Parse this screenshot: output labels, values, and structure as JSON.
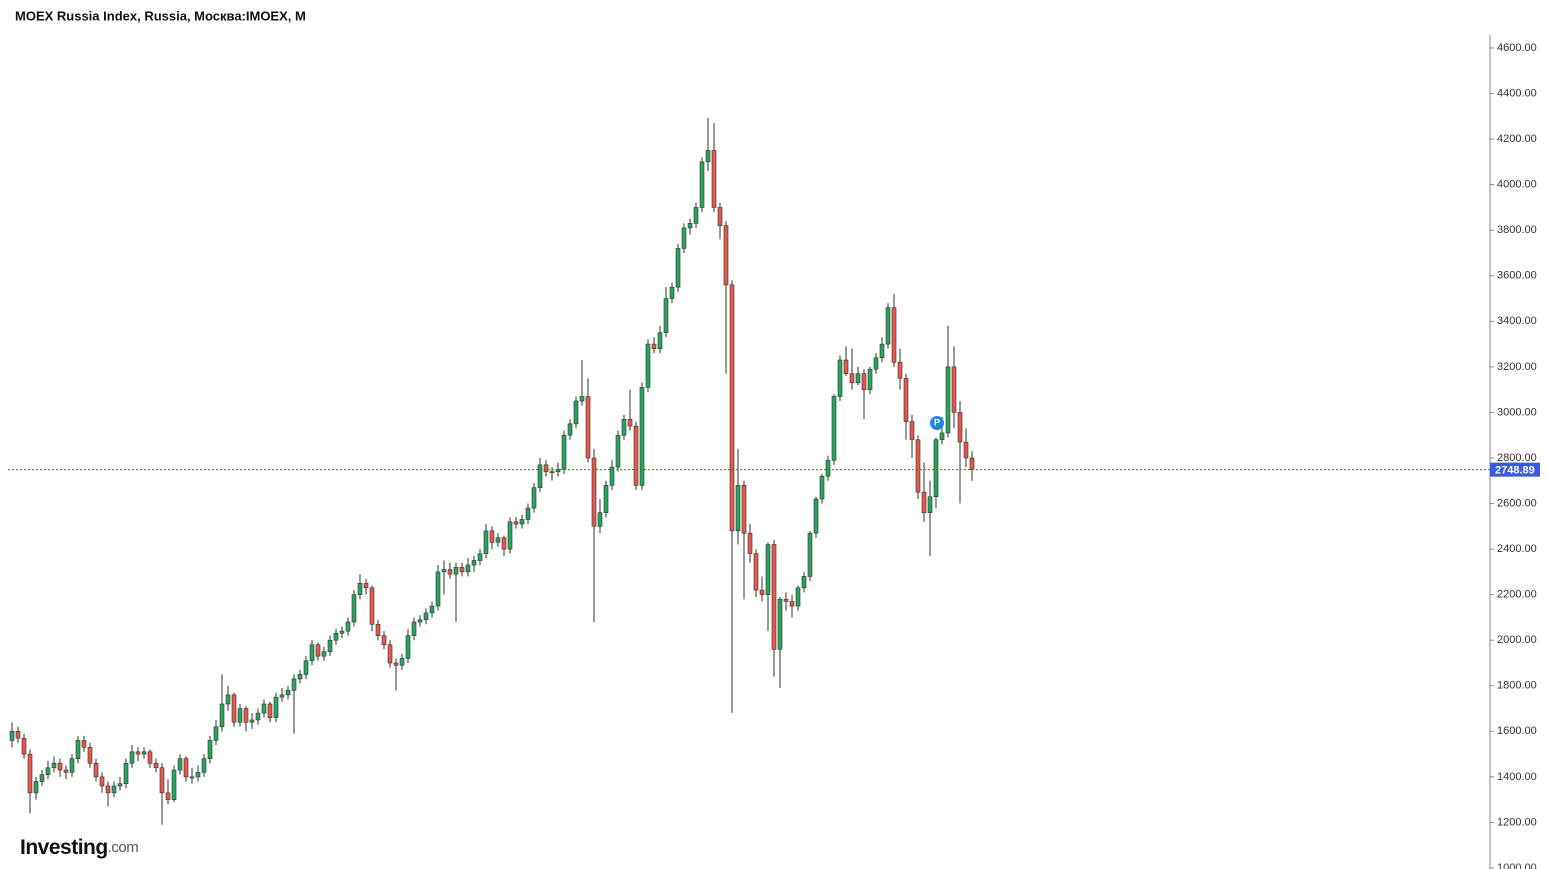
{
  "chart_data": {
    "type": "candlestick",
    "title": "MOEX Russia Index, Russia, Москва:IMOEX, M",
    "logo": {
      "name": "Investing",
      "suffix": ".com"
    },
    "marker_label": "P",
    "up_color": "#2aa35c",
    "down_color": "#e2594b",
    "line_color": "#3b5bdb",
    "ylim": [
      1000,
      4657
    ],
    "yticks": [
      {
        "value": 1000,
        "label": "1000.00"
      },
      {
        "value": 1200,
        "label": "1200.00"
      },
      {
        "value": 1400,
        "label": "1400.00"
      },
      {
        "value": 1600,
        "label": "1600.00"
      },
      {
        "value": 1800,
        "label": "1800.00"
      },
      {
        "value": 2000,
        "label": "2000.00"
      },
      {
        "value": 2200,
        "label": "2200.00"
      },
      {
        "value": 2400,
        "label": "2400.00"
      },
      {
        "value": 2600,
        "label": "2600.00"
      },
      {
        "value": 2800,
        "label": "2800.00"
      },
      {
        "value": 3000,
        "label": "3000.00"
      },
      {
        "value": 3200,
        "label": "3200.00"
      },
      {
        "value": 3400,
        "label": "3400.00"
      },
      {
        "value": 3600,
        "label": "3600.00"
      },
      {
        "value": 3800,
        "label": "3800.00"
      },
      {
        "value": 4000,
        "label": "4000.00"
      },
      {
        "value": 4200,
        "label": "4200.00"
      },
      {
        "value": 4400,
        "label": "4400.00"
      },
      {
        "value": 4600,
        "label": "4600.00"
      }
    ],
    "last_price": 2748.89,
    "candles": [
      [
        1560,
        1640,
        1530,
        1600
      ],
      [
        1600,
        1620,
        1550,
        1570
      ],
      [
        1570,
        1590,
        1480,
        1500
      ],
      [
        1500,
        1520,
        1240,
        1330
      ],
      [
        1330,
        1400,
        1300,
        1380
      ],
      [
        1380,
        1430,
        1360,
        1410
      ],
      [
        1410,
        1470,
        1390,
        1440
      ],
      [
        1440,
        1490,
        1420,
        1460
      ],
      [
        1460,
        1480,
        1400,
        1430
      ],
      [
        1430,
        1450,
        1390,
        1420
      ],
      [
        1420,
        1500,
        1400,
        1480
      ],
      [
        1480,
        1580,
        1460,
        1560
      ],
      [
        1560,
        1580,
        1510,
        1530
      ],
      [
        1530,
        1550,
        1440,
        1460
      ],
      [
        1460,
        1480,
        1380,
        1400
      ],
      [
        1400,
        1420,
        1330,
        1360
      ],
      [
        1360,
        1380,
        1270,
        1330
      ],
      [
        1330,
        1380,
        1310,
        1360
      ],
      [
        1360,
        1400,
        1340,
        1370
      ],
      [
        1370,
        1480,
        1350,
        1460
      ],
      [
        1460,
        1540,
        1440,
        1510
      ],
      [
        1510,
        1530,
        1470,
        1500
      ],
      [
        1500,
        1530,
        1480,
        1510
      ],
      [
        1510,
        1520,
        1440,
        1460
      ],
      [
        1460,
        1480,
        1420,
        1440
      ],
      [
        1440,
        1460,
        1190,
        1330
      ],
      [
        1330,
        1390,
        1280,
        1300
      ],
      [
        1300,
        1450,
        1290,
        1430
      ],
      [
        1430,
        1500,
        1410,
        1480
      ],
      [
        1480,
        1490,
        1380,
        1400
      ],
      [
        1400,
        1440,
        1370,
        1400
      ],
      [
        1400,
        1450,
        1380,
        1420
      ],
      [
        1420,
        1500,
        1400,
        1480
      ],
      [
        1480,
        1580,
        1460,
        1560
      ],
      [
        1560,
        1650,
        1540,
        1620
      ],
      [
        1620,
        1850,
        1600,
        1720
      ],
      [
        1720,
        1800,
        1690,
        1760
      ],
      [
        1760,
        1770,
        1620,
        1640
      ],
      [
        1640,
        1720,
        1620,
        1700
      ],
      [
        1700,
        1710,
        1600,
        1640
      ],
      [
        1640,
        1680,
        1610,
        1650
      ],
      [
        1650,
        1700,
        1630,
        1680
      ],
      [
        1680,
        1740,
        1660,
        1720
      ],
      [
        1720,
        1730,
        1640,
        1660
      ],
      [
        1660,
        1770,
        1640,
        1750
      ],
      [
        1750,
        1790,
        1730,
        1760
      ],
      [
        1760,
        1800,
        1740,
        1780
      ],
      [
        1780,
        1850,
        1590,
        1830
      ],
      [
        1830,
        1870,
        1810,
        1850
      ],
      [
        1850,
        1930,
        1830,
        1910
      ],
      [
        1910,
        2000,
        1890,
        1980
      ],
      [
        1980,
        1990,
        1910,
        1930
      ],
      [
        1930,
        1970,
        1910,
        1950
      ],
      [
        1950,
        2020,
        1930,
        2000
      ],
      [
        2000,
        2050,
        1980,
        2030
      ],
      [
        2030,
        2060,
        2010,
        2040
      ],
      [
        2040,
        2100,
        2020,
        2080
      ],
      [
        2080,
        2220,
        2060,
        2200
      ],
      [
        2200,
        2290,
        2180,
        2250
      ],
      [
        2250,
        2270,
        2200,
        2230
      ],
      [
        2230,
        2240,
        2040,
        2070
      ],
      [
        2070,
        2090,
        2000,
        2020
      ],
      [
        2020,
        2040,
        1960,
        1980
      ],
      [
        1980,
        2000,
        1880,
        1900
      ],
      [
        1900,
        1920,
        1780,
        1890
      ],
      [
        1890,
        1940,
        1870,
        1920
      ],
      [
        1920,
        2050,
        1900,
        2020
      ],
      [
        2020,
        2100,
        2000,
        2080
      ],
      [
        2080,
        2110,
        2060,
        2090
      ],
      [
        2090,
        2140,
        2070,
        2120
      ],
      [
        2120,
        2170,
        2100,
        2150
      ],
      [
        2150,
        2330,
        2130,
        2300
      ],
      [
        2300,
        2350,
        2200,
        2310
      ],
      [
        2310,
        2340,
        2270,
        2290
      ],
      [
        2290,
        2340,
        2080,
        2320
      ],
      [
        2320,
        2340,
        2280,
        2300
      ],
      [
        2300,
        2360,
        2280,
        2330
      ],
      [
        2330,
        2370,
        2300,
        2350
      ],
      [
        2350,
        2400,
        2330,
        2380
      ],
      [
        2380,
        2510,
        2360,
        2480
      ],
      [
        2480,
        2500,
        2400,
        2430
      ],
      [
        2430,
        2470,
        2410,
        2450
      ],
      [
        2450,
        2460,
        2370,
        2400
      ],
      [
        2400,
        2540,
        2380,
        2520
      ],
      [
        2520,
        2540,
        2490,
        2510
      ],
      [
        2510,
        2550,
        2490,
        2530
      ],
      [
        2530,
        2600,
        2510,
        2580
      ],
      [
        2580,
        2690,
        2560,
        2670
      ],
      [
        2670,
        2800,
        2650,
        2770
      ],
      [
        2770,
        2790,
        2720,
        2740
      ],
      [
        2740,
        2760,
        2700,
        2740
      ],
      [
        2740,
        2780,
        2720,
        2750
      ],
      [
        2750,
        2920,
        2730,
        2900
      ],
      [
        2900,
        2970,
        2880,
        2950
      ],
      [
        2950,
        3070,
        2930,
        3050
      ],
      [
        3050,
        3230,
        3030,
        3070
      ],
      [
        3070,
        3150,
        2780,
        2800
      ],
      [
        2800,
        2840,
        2080,
        2500
      ],
      [
        2500,
        2620,
        2470,
        2560
      ],
      [
        2560,
        2700,
        2540,
        2680
      ],
      [
        2680,
        2790,
        2660,
        2760
      ],
      [
        2760,
        2920,
        2740,
        2900
      ],
      [
        2900,
        2990,
        2880,
        2970
      ],
      [
        2970,
        3100,
        2920,
        2940
      ],
      [
        2940,
        2960,
        2660,
        2680
      ],
      [
        2680,
        3130,
        2660,
        3110
      ],
      [
        3110,
        3320,
        3090,
        3300
      ],
      [
        3300,
        3330,
        3260,
        3280
      ],
      [
        3280,
        3380,
        3260,
        3350
      ],
      [
        3350,
        3550,
        3330,
        3500
      ],
      [
        3500,
        3570,
        3480,
        3550
      ],
      [
        3550,
        3740,
        3530,
        3720
      ],
      [
        3720,
        3830,
        3700,
        3810
      ],
      [
        3810,
        3850,
        3780,
        3830
      ],
      [
        3830,
        3920,
        3810,
        3900
      ],
      [
        3900,
        4120,
        3880,
        4100
      ],
      [
        4100,
        4292,
        4060,
        4150
      ],
      [
        4150,
        4270,
        3880,
        3900
      ],
      [
        3900,
        3920,
        3760,
        3820
      ],
      [
        3820,
        3840,
        3170,
        3560
      ],
      [
        3560,
        3580,
        1681,
        2480
      ],
      [
        2480,
        2840,
        2420,
        2680
      ],
      [
        2680,
        2700,
        2180,
        2470
      ],
      [
        2470,
        2510,
        2340,
        2380
      ],
      [
        2380,
        2400,
        2190,
        2220
      ],
      [
        2220,
        2280,
        2170,
        2200
      ],
      [
        2200,
        2430,
        2040,
        2420
      ],
      [
        2420,
        2440,
        1840,
        1960
      ],
      [
        1960,
        2190,
        1790,
        2180
      ],
      [
        2180,
        2210,
        2130,
        2170
      ],
      [
        2170,
        2200,
        2100,
        2150
      ],
      [
        2150,
        2240,
        2130,
        2230
      ],
      [
        2230,
        2300,
        2210,
        2280
      ],
      [
        2280,
        2480,
        2260,
        2470
      ],
      [
        2470,
        2630,
        2450,
        2620
      ],
      [
        2620,
        2730,
        2600,
        2720
      ],
      [
        2720,
        2810,
        2700,
        2790
      ],
      [
        2790,
        3080,
        2770,
        3070
      ],
      [
        3070,
        3250,
        3050,
        3230
      ],
      [
        3230,
        3290,
        3160,
        3170
      ],
      [
        3170,
        3280,
        3100,
        3130
      ],
      [
        3130,
        3200,
        3120,
        3170
      ],
      [
        3170,
        3190,
        2970,
        3100
      ],
      [
        3100,
        3200,
        3080,
        3190
      ],
      [
        3190,
        3260,
        3170,
        3240
      ],
      [
        3240,
        3330,
        3220,
        3300
      ],
      [
        3300,
        3480,
        3280,
        3460
      ],
      [
        3460,
        3520,
        3200,
        3220
      ],
      [
        3220,
        3280,
        3100,
        3150
      ],
      [
        3150,
        3170,
        2880,
        2960
      ],
      [
        2960,
        2990,
        2800,
        2880
      ],
      [
        2880,
        2900,
        2620,
        2650
      ],
      [
        2650,
        2780,
        2520,
        2560
      ],
      [
        2560,
        2700,
        2370,
        2630
      ],
      [
        2630,
        2890,
        2580,
        2880
      ],
      [
        2880,
        2980,
        2860,
        2910
      ],
      [
        2910,
        3380,
        2890,
        3200
      ],
      [
        3200,
        3290,
        2930,
        3000
      ],
      [
        3000,
        3050,
        2600,
        2870
      ],
      [
        2870,
        2930,
        2760,
        2800
      ],
      [
        2800,
        2830,
        2700,
        2748.89
      ]
    ]
  }
}
